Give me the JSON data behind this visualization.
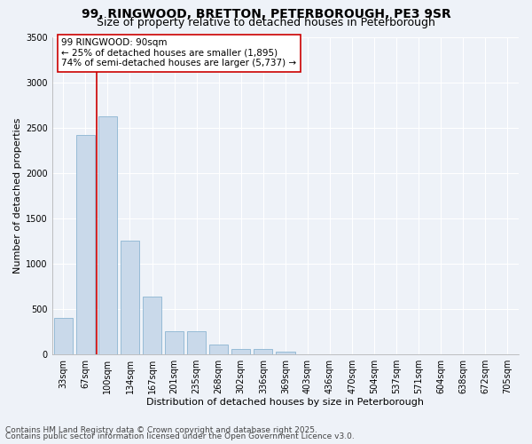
{
  "title1": "99, RINGWOOD, BRETTON, PETERBOROUGH, PE3 9SR",
  "title2": "Size of property relative to detached houses in Peterborough",
  "xlabel": "Distribution of detached houses by size in Peterborough",
  "ylabel": "Number of detached properties",
  "categories": [
    "33sqm",
    "67sqm",
    "100sqm",
    "134sqm",
    "167sqm",
    "201sqm",
    "235sqm",
    "268sqm",
    "302sqm",
    "336sqm",
    "369sqm",
    "403sqm",
    "436sqm",
    "470sqm",
    "504sqm",
    "537sqm",
    "571sqm",
    "604sqm",
    "638sqm",
    "672sqm",
    "705sqm"
  ],
  "values": [
    400,
    2420,
    2620,
    1250,
    640,
    260,
    260,
    110,
    60,
    55,
    30,
    5,
    0,
    0,
    0,
    0,
    0,
    0,
    0,
    0,
    0
  ],
  "bar_color": "#c9d9ea",
  "bar_edge_color": "#8cb4d2",
  "vline_color": "#cc0000",
  "vline_pos": 1.5,
  "annotation_text": "99 RINGWOOD: 90sqm\n← 25% of detached houses are smaller (1,895)\n74% of semi-detached houses are larger (5,737) →",
  "annotation_box_facecolor": "white",
  "annotation_box_edgecolor": "#cc0000",
  "ylim": [
    0,
    3500
  ],
  "yticks": [
    0,
    500,
    1000,
    1500,
    2000,
    2500,
    3000,
    3500
  ],
  "bg_color": "#eef2f8",
  "plot_bg_color": "#eef2f8",
  "grid_color": "white",
  "footer1": "Contains HM Land Registry data © Crown copyright and database right 2025.",
  "footer2": "Contains public sector information licensed under the Open Government Licence v3.0.",
  "title_fontsize": 10,
  "subtitle_fontsize": 9,
  "axis_label_fontsize": 8,
  "tick_fontsize": 7,
  "annotation_fontsize": 7.5,
  "footer_fontsize": 6.5
}
